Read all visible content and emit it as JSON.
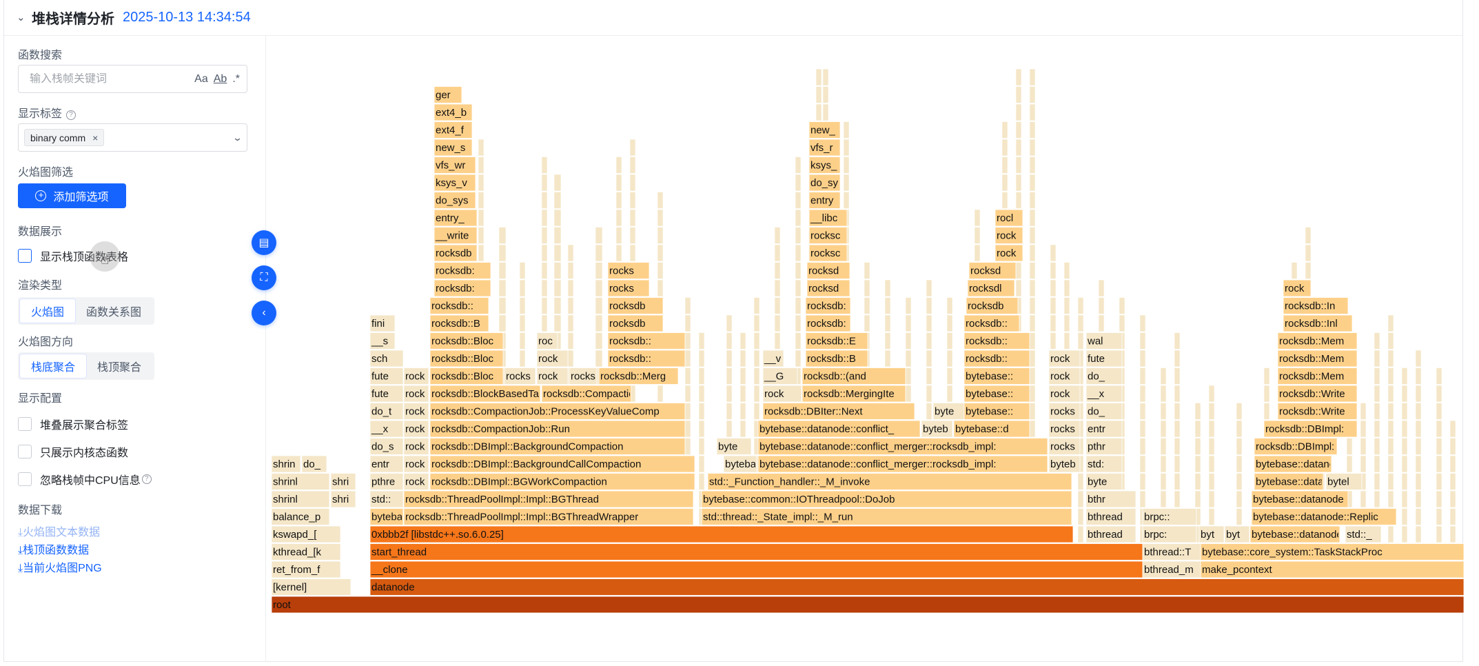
{
  "header": {
    "chevron_icon": "chevron-down-icon",
    "title": "堆栈详情分析",
    "timestamp": "2025-10-13 14:34:54"
  },
  "sidebar": {
    "search_label": "函数搜索",
    "search_placeholder": "输入栈帧关键词",
    "search_options": [
      "Aa",
      "Ab",
      ".*"
    ],
    "tags_label": "显示标签",
    "tag": "binary comm",
    "tag_remove": "×",
    "filter_label": "火焰图筛选",
    "add_filter_button": "添加筛选项",
    "data_display_label": "数据展示",
    "show_top_table": "显示栈顶函数表格",
    "render_type_label": "渲染类型",
    "render_types": [
      "火焰图",
      "函数关系图"
    ],
    "direction_label": "火焰图方向",
    "directions": [
      "栈底聚合",
      "栈顶聚合"
    ],
    "display_config_label": "显示配置",
    "config_options": [
      "堆叠展示聚合标签",
      "只展示内核态函数",
      "忽略栈帧中CPU信息"
    ],
    "download_label": "数据下载",
    "downloads": [
      "火焰图文本数据",
      "栈顶函数数据",
      "当前火焰图PNG"
    ],
    "download_icon": "download-icon"
  },
  "floating_buttons": [
    "book-icon",
    "fullscreen-icon",
    "collapse-left-icon"
  ],
  "colors": {
    "accent": "#1664ff",
    "root": "#b83e0a",
    "deep": "#d65a10",
    "orange": "#f6761a",
    "mid": "#fba549",
    "light": "#fdd089",
    "pale": "#f4e6c7"
  },
  "flame": {
    "row_labels_bottom_up": [
      [
        "root"
      ],
      [
        "[kernel]",
        "datanode"
      ],
      [
        "ret_from_f",
        "__clone",
        "bthread_m",
        "make_pcontext"
      ],
      [
        "kthread_[k",
        "start_thread",
        "bthread::T",
        "bytebase::core_system::TaskStackProc"
      ],
      [
        "kswapd_[",
        "0xbbb2f [libstdc++.so.6.0.25]",
        "bthread",
        "brpc:",
        "byt",
        "byt",
        "bytebase::datanode::Replic",
        "std::_"
      ],
      [
        "balance_p",
        "byteba",
        "rocksdb::ThreadPoolImpl::Impl::BGThreadWrapper",
        "std::thread::_State_impl::_M_run",
        "bthread",
        "brpc::",
        "bytebase::datanode::Replic"
      ],
      [
        "shrinl",
        "shri",
        "std::",
        "rocksdb::ThreadPoolImpl::Impl::BGThread",
        "bytebase::common::IOThreadpool::DoJob",
        "bthr",
        "bytebase::datanode"
      ],
      [
        "shrinl",
        "shri",
        "pthre",
        "rock",
        "rocksdb::DBImpl::BGWorkCompaction",
        "std::_Function_handler::_M_invoke",
        "byte",
        "bytebase::datanode",
        "bytel"
      ],
      [
        "shrin",
        "do_",
        "entr",
        "rock",
        "rocksdb::DBImpl::BackgroundCallCompaction",
        "byteba",
        "bytebase::datanode::conflict_merger::rocksdb_impl:",
        "byteb",
        "std:",
        "bytebase::datano"
      ],
      [
        "do_s",
        "rock",
        "rocksdb::DBImpl::BackgroundCompaction",
        "byte",
        "bytebase::datanode::conflict_merger::rocksdb_impl:",
        "rocks",
        "pthr",
        "rocksdb::DBImpl:"
      ],
      [
        "__x",
        "rock",
        "rocksdb::CompactionJob::Run",
        "bytebase::datanode::conflict_",
        "byteb",
        "bytebase::d",
        "rocks",
        "entr",
        "rocksdb::DBImpl:"
      ],
      [
        "do_t",
        "rock",
        "rocksdb::CompactionJob::ProcessKeyValueComp",
        "rocksdb::DBIter::Next",
        "byte",
        "bytebase::",
        "rocks",
        "do_",
        "rocksdb::Write"
      ],
      [
        "fute",
        "rock",
        "rocksdb::BlockBasedTable",
        "rocksdb::Compaction",
        "rock",
        "rocksdb::MergingIte",
        "bytebase::",
        "rock",
        "__x",
        "rocksdb::Write"
      ],
      [
        "fute",
        "rock",
        "rocksdb::Bloc",
        "rocks",
        "rock",
        "rocks",
        "rocksdb::Merg",
        "__G",
        "rocksdb::(and",
        "bytebase::",
        "rock",
        "do_",
        "rocksdb::Mem"
      ],
      [
        "sch",
        "rocksdb::Bloc",
        "rock",
        "rocksdb::",
        "__v",
        "rocksdb::B",
        "rocksdb::",
        "rock",
        "fute",
        "rocksdb::Mem"
      ],
      [
        "__s",
        "rocksdb::Bloc",
        "roc",
        "rocksdb::",
        "rocksdb::E",
        "rocksdb::",
        "wal",
        "rocksdb::Mem"
      ],
      [
        "fini",
        "rocksdb::B",
        "rocksdb",
        "rocksdb:",
        "rocksdb::",
        "rocksdb::Inl"
      ],
      [
        "rocksdb::",
        "rocksdb",
        "rocksdb:",
        "rocksdb",
        "rocksdb::In"
      ],
      [
        "rocksdb:",
        "rocks",
        "rocksd",
        "rocksdl",
        "rock"
      ],
      [
        "rocksdb:",
        "rocks",
        "rocksd",
        "rocksd"
      ],
      [
        "rocksdb",
        "rocksc",
        "rock"
      ],
      [
        "__write",
        "rocksc",
        "rock"
      ],
      [
        "entry_",
        "__libc",
        "rocl"
      ],
      [
        "do_sys",
        "entry"
      ],
      [
        "ksys_v",
        "do_sy"
      ],
      [
        "vfs_wr",
        "ksys_"
      ],
      [
        "new_s",
        "vfs_r"
      ],
      [
        "ext4_f",
        "new_"
      ],
      [
        "ext4_b"
      ],
      [
        "ger"
      ]
    ]
  }
}
